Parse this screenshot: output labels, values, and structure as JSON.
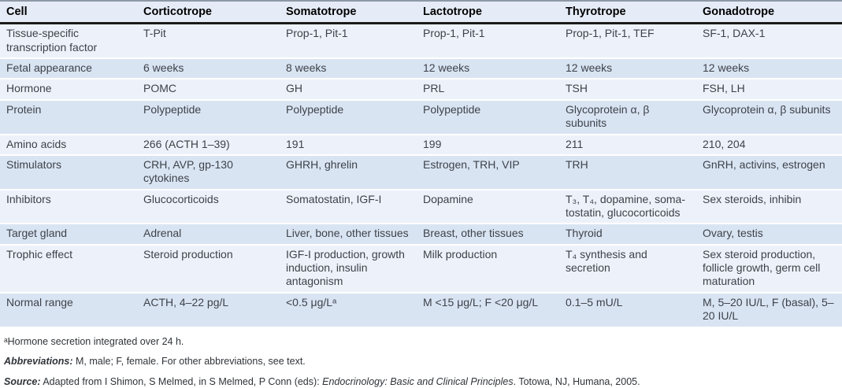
{
  "table": {
    "columns": [
      "Cell",
      "Corticotrope",
      "Somatotrope",
      "Lactotrope",
      "Thyrotrope",
      "Gonadotrope"
    ],
    "rows": [
      {
        "label": "Tissue-specific transcription factor",
        "cells": [
          "T-Pit",
          "Prop-1, Pit-1",
          "Prop-1, Pit-1",
          "Prop-1, Pit-1, TEF",
          "SF-1, DAX-1"
        ]
      },
      {
        "label": "Fetal appearance",
        "cells": [
          "6 weeks",
          "8 weeks",
          "12 weeks",
          "12 weeks",
          "12 weeks"
        ]
      },
      {
        "label": "Hormone",
        "cells": [
          "POMC",
          "GH",
          "PRL",
          "TSH",
          "FSH, LH"
        ]
      },
      {
        "label": "Protein",
        "cells": [
          "Polypeptide",
          "Polypeptide",
          "Polypeptide",
          "Glycoprotein α, β subunits",
          "Glycoprotein α, β subunits"
        ]
      },
      {
        "label": "Amino acids",
        "cells": [
          "266 (ACTH 1–39)",
          "191",
          "199",
          "211",
          "210, 204"
        ]
      },
      {
        "label": "Stimulators",
        "cells": [
          "CRH, AVP, gp-130 cytokines",
          "GHRH, ghrelin",
          "Estrogen, TRH, VIP",
          "TRH",
          "GnRH, activins, estrogen"
        ]
      },
      {
        "label": "Inhibitors",
        "cells": [
          "Glucocorticoids",
          "Somatostatin, IGF-I",
          "Dopamine",
          "T₃, T₄, dopamine, soma-tostatin, glucocorticoids",
          "Sex steroids, inhibin"
        ]
      },
      {
        "label": "Target gland",
        "cells": [
          "Adrenal",
          "Liver, bone, other tissues",
          "Breast, other tissues",
          "Thyroid",
          "Ovary, testis"
        ]
      },
      {
        "label": "Trophic effect",
        "cells": [
          "Steroid production",
          "IGF-I production, growth induction, insulin antagonism",
          "Milk production",
          "T₄ synthesis and secretion",
          "Sex steroid production, follicle growth, germ cell maturation"
        ]
      },
      {
        "label": "Normal range",
        "cells": [
          "ACTH, 4–22 pg/L",
          "<0.5 μg/Lᵃ",
          "M <15 μg/L; F <20 μg/L",
          "0.1–5 mU/L",
          "M, 5–20 IU/L, F (basal), 5–20 IU/L"
        ]
      }
    ]
  },
  "footnotes": {
    "note_a": "ᵃHormone secretion integrated over 24 h.",
    "abbreviations_label": "Abbreviations:",
    "abbreviations_text": " M, male; F, female. For other abbreviations, see text.",
    "source_label": "Source:",
    "source_text_before": " Adapted from I Shimon, S Melmed, in S Melmed, P Conn (eds): ",
    "source_title": "Endocrinology: Basic and Clinical Principles",
    "source_text_after": ". Totowa, NJ, Humana, 2005."
  },
  "colors": {
    "row_light": "#edf2fa",
    "row_dark": "#d9e4f3",
    "header_background": "#e5ecf7",
    "header_rule": "#1b1b1b",
    "top_rule": "#8e99a6",
    "body_text": "#3d4249"
  }
}
